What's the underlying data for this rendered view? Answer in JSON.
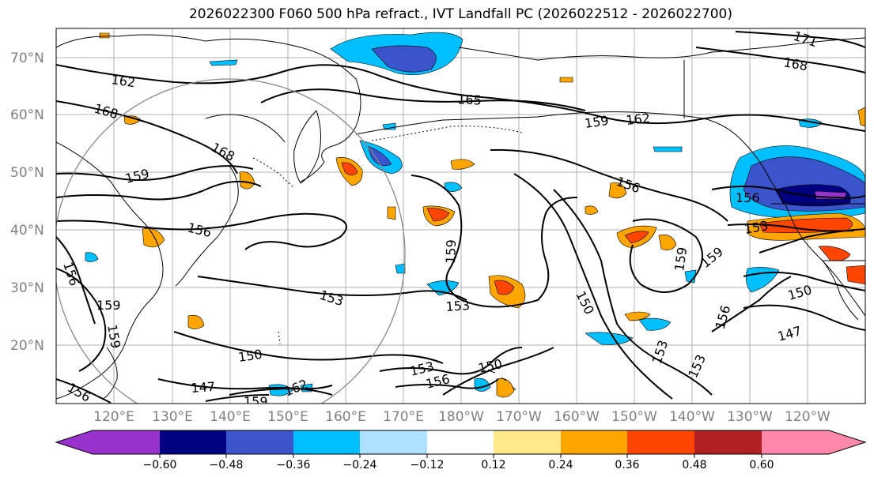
{
  "title": "2026022300 F060 500 hPa refract., IVT Landfall PC (2026022512 - 2026022700)",
  "colors": {
    "background": "#ffffff",
    "grid": "#b0b0b0",
    "contour": "#000000",
    "coast": "#000000",
    "range_circle": "#888888",
    "axis_label": "#808080"
  },
  "lat_labels": [
    "70°N",
    "60°N",
    "50°N",
    "40°N",
    "30°N",
    "20°N"
  ],
  "lon_labels": [
    "120°E",
    "130°E",
    "140°E",
    "150°E",
    "160°E",
    "170°E",
    "180°W",
    "170°W",
    "160°W",
    "150°W",
    "140°W",
    "130°W",
    "120°W"
  ],
  "contour_labels": [
    "171",
    "168",
    "162",
    "165",
    "168",
    "159",
    "162",
    "168",
    "159",
    "156",
    "156",
    "156",
    "156",
    "159",
    "159",
    "153",
    "159",
    "150",
    "153",
    "159",
    "153",
    "156",
    "150",
    "150",
    "147",
    "153",
    "156",
    "150",
    "147",
    "153",
    "159",
    "162",
    "159",
    "153",
    "156"
  ],
  "colorbar": {
    "colors": [
      "#9932cc",
      "#000080",
      "#3a55cc",
      "#00bfff",
      "#b0e0ff",
      "#ffffff",
      "#ffe98a",
      "#ffa500",
      "#ff4500",
      "#b22222",
      "#ff88aa"
    ],
    "ticks": [
      "−0.60",
      "−0.48",
      "−0.36",
      "−0.24",
      "−0.12",
      "0.12",
      "0.24",
      "0.36",
      "0.48",
      "0.60"
    ],
    "extend": "both"
  }
}
